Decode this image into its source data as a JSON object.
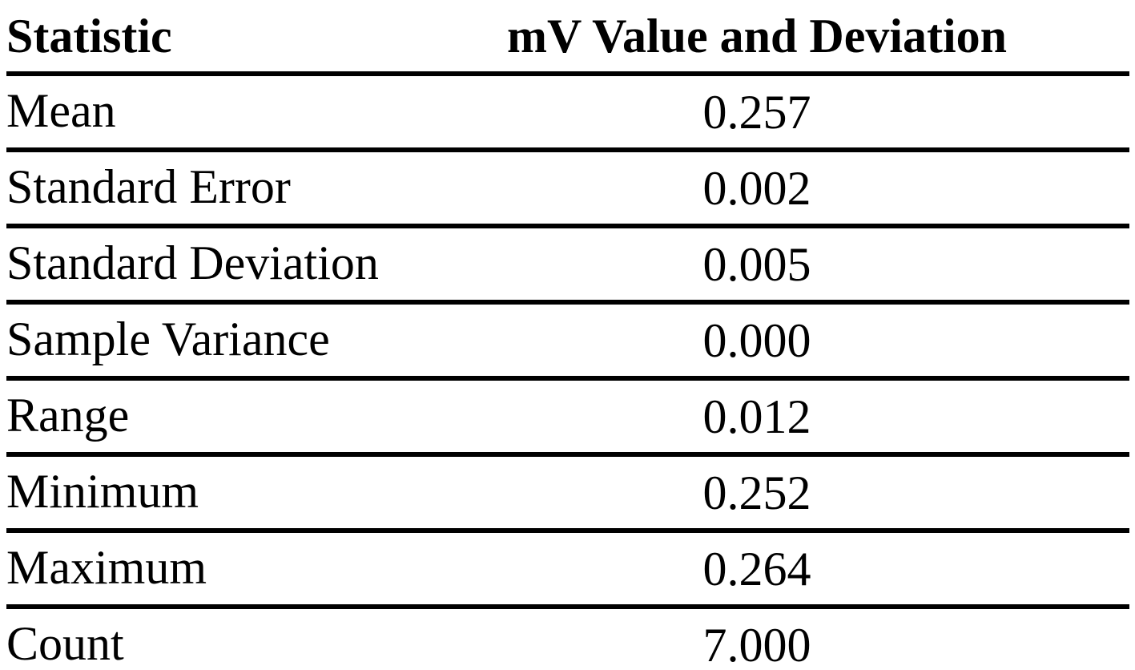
{
  "colors": {
    "background": "#ffffff",
    "text": "#000000",
    "rule": "#000000"
  },
  "table": {
    "headers": {
      "statistic": "Statistic",
      "value": "mV Value and Deviation"
    },
    "rows": [
      {
        "label": "Mean",
        "value": "0.257"
      },
      {
        "label": "Standard Error",
        "value": "0.002"
      },
      {
        "label": "Standard Deviation",
        "value": "0.005"
      },
      {
        "label": "Sample Variance",
        "value": "0.000"
      },
      {
        "label": "Range",
        "value": "0.012"
      },
      {
        "label": "Minimum",
        "value": "0.252"
      },
      {
        "label": "Maximum",
        "value": "0.264"
      },
      {
        "label": "Count",
        "value": "7.000"
      }
    ]
  },
  "chart_data": {
    "type": "table",
    "columns": [
      "Statistic",
      "mV Value and Deviation"
    ],
    "rows": [
      [
        "Mean",
        0.257
      ],
      [
        "Standard Error",
        0.002
      ],
      [
        "Standard Deviation",
        0.005
      ],
      [
        "Sample Variance",
        0.0
      ],
      [
        "Range",
        0.012
      ],
      [
        "Minimum",
        0.252
      ],
      [
        "Maximum",
        0.264
      ],
      [
        "Count",
        7.0
      ]
    ]
  }
}
